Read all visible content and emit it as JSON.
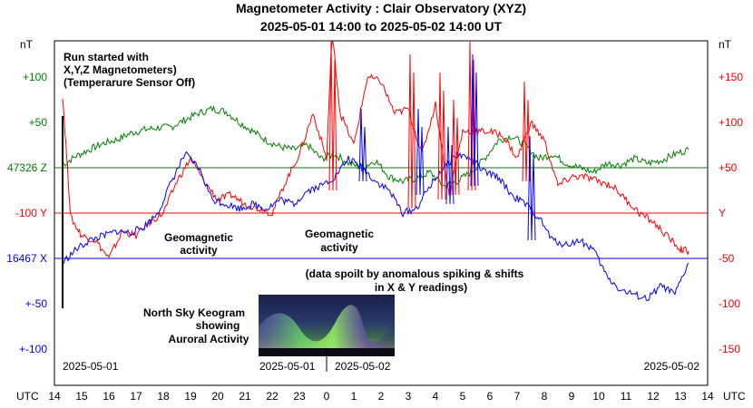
{
  "title": "Magnetometer Activity : Clair Observatory (XYZ)",
  "subtitle": "2025-05-01 14:00 to 2025-05-02 14:00 UT",
  "left_unit": "nT",
  "right_unit": "nT",
  "x_unit": "UTC",
  "left_ticks": [
    {
      "label": "+100",
      "color": "#008000"
    },
    {
      "label": "+50",
      "color": "#008000"
    },
    {
      "label": "47326 Z",
      "color": "#008000"
    },
    {
      "label": "-100  Y",
      "color": "#ff0000"
    },
    {
      "label": "16467 X",
      "color": "#0000ff"
    },
    {
      "label": "+-50",
      "color": "#0000ff"
    },
    {
      "label": "+-100",
      "color": "#0000ff"
    }
  ],
  "right_ticks": [
    {
      "label": "+150",
      "color": "#ff0000"
    },
    {
      "label": "+100",
      "color": "#ff0000"
    },
    {
      "label": "+50",
      "color": "#ff0000"
    },
    {
      "label": "Y",
      "color": "#ff0000"
    },
    {
      "label": "-50",
      "color": "#ff0000"
    },
    {
      "label": "-100",
      "color": "#ff0000"
    },
    {
      "label": "-150",
      "color": "#ff0000"
    }
  ],
  "x_ticks": [
    "14",
    "15",
    "16",
    "17",
    "18",
    "19",
    "20",
    "21",
    "22",
    "23",
    "0",
    "1",
    "2",
    "3",
    "4",
    "5",
    "6",
    "7",
    "8",
    "9",
    "10",
    "11",
    "12",
    "13",
    "14"
  ],
  "date_labels": {
    "start": "2025-05-01",
    "keogram_left": "2025-05-01",
    "keogram_right": "2025-05-02",
    "end": "2025-05-02"
  },
  "annotations": {
    "run_started": [
      "Run started with",
      "X,Y,Z Magnetometers)",
      " (Temperarure Sensor Off)"
    ],
    "geo1": [
      "Geomagnetic",
      "activity"
    ],
    "geo2": [
      "Geomagnetic",
      "activity"
    ],
    "spoilt": [
      "(data spoilt by anomalous spiking & shifts",
      "in X & Y readings)"
    ],
    "keogram": [
      "North Sky Keogram",
      "showing",
      "Auroral Activity"
    ]
  },
  "colors": {
    "z": "#008000",
    "y": "#ff0000",
    "x": "#0000ff",
    "keogram_bg": "#101838"
  },
  "chart_data": {
    "type": "line",
    "title": "Magnetometer Activity : Clair Observatory (XYZ)",
    "subtitle": "2025-05-01 14:00 to 2025-05-02 14:00 UT",
    "x_range_utc_hours": [
      14,
      38
    ],
    "grid": false,
    "series": [
      {
        "name": "Z",
        "baseline": 47326,
        "color": "#008000",
        "x": [
          14.3,
          14.8,
          15.3,
          15.8,
          16.3,
          16.8,
          17.3,
          17.8,
          18.3,
          18.8,
          19.3,
          19.8,
          20.3,
          20.8,
          21.3,
          21.8,
          22.3,
          22.8,
          23.3,
          23.8,
          24.3,
          24.8,
          25.3,
          25.8,
          26.3,
          26.8,
          27.3,
          27.8,
          28.3,
          28.8,
          29.3,
          29.8,
          30.3,
          30.8,
          31.3,
          31.8,
          32.3,
          32.8,
          33.3,
          33.8,
          34.3,
          34.8,
          35.3,
          35.8,
          36.3,
          36.8,
          37.3
        ],
        "values": [
          3,
          13,
          20,
          27,
          31,
          38,
          42,
          44,
          45,
          53,
          60,
          65,
          62,
          50,
          40,
          30,
          23,
          20,
          25,
          10,
          15,
          5,
          0,
          8,
          -10,
          -15,
          -12,
          -5,
          -20,
          -15,
          -5,
          10,
          30,
          35,
          25,
          10,
          15,
          5,
          0,
          -5,
          5,
          3,
          10,
          5,
          8,
          15,
          20
        ]
      },
      {
        "name": "Y",
        "baseline": -100,
        "color": "#ff0000",
        "x": [
          14.3,
          14.6,
          15.0,
          15.5,
          16.0,
          16.5,
          17.0,
          17.5,
          18.0,
          18.5,
          19.0,
          19.5,
          20.0,
          20.5,
          21.0,
          21.5,
          22.0,
          22.5,
          23.0,
          23.5,
          24.0,
          24.2,
          24.5,
          25.0,
          25.5,
          26.0,
          26.5,
          27.0,
          27.5,
          28.0,
          28.5,
          29.0,
          29.5,
          30.0,
          30.5,
          31.0,
          31.5,
          32.0,
          32.5,
          33.0,
          33.5,
          34.0,
          34.5,
          35.0,
          35.5,
          36.0,
          36.5,
          37.0,
          37.3
        ],
        "values": [
          130,
          -5,
          -25,
          -30,
          -50,
          -20,
          -25,
          -10,
          0,
          35,
          60,
          35,
          15,
          20,
          10,
          5,
          0,
          35,
          65,
          110,
          60,
          200,
          110,
          75,
          150,
          145,
          110,
          115,
          65,
          120,
          20,
          90,
          90,
          90,
          85,
          60,
          100,
          80,
          30,
          40,
          40,
          35,
          30,
          15,
          0,
          -10,
          -25,
          -40,
          -42
        ]
      },
      {
        "name": "X",
        "baseline": 16467,
        "color": "#0000ff",
        "x": [
          14.3,
          14.8,
          15.3,
          15.8,
          16.3,
          16.8,
          17.3,
          17.8,
          18.3,
          18.8,
          19.3,
          19.8,
          20.3,
          20.8,
          21.3,
          21.8,
          22.3,
          22.8,
          23.3,
          23.8,
          24.3,
          24.8,
          25.3,
          25.8,
          26.3,
          26.8,
          27.3,
          27.8,
          28.3,
          28.8,
          29.3,
          29.8,
          30.3,
          30.8,
          31.3,
          31.8,
          32.3,
          32.8,
          33.3,
          33.8,
          34.3,
          34.8,
          35.3,
          35.8,
          36.3,
          36.8,
          37.3
        ],
        "values": [
          -5,
          10,
          20,
          25,
          30,
          28,
          35,
          50,
          85,
          115,
          100,
          65,
          60,
          55,
          60,
          55,
          65,
          60,
          75,
          80,
          90,
          110,
          100,
          85,
          75,
          50,
          55,
          80,
          100,
          115,
          110,
          95,
          90,
          70,
          60,
          45,
          20,
          15,
          20,
          10,
          -20,
          -35,
          -40,
          -45,
          -30,
          -40,
          -5
        ]
      }
    ],
    "left_axis": {
      "unit": "nT",
      "labels": [
        "+100",
        "+50",
        "47326 Z",
        "-100  Y",
        "16467 X",
        "+-50",
        "+-100"
      ]
    },
    "right_axis": {
      "unit": "nT",
      "labels": [
        "+150",
        "+100",
        "+50",
        "Y",
        "-50",
        "-100",
        "-150"
      ]
    },
    "x_axis": {
      "unit": "UTC",
      "labels": [
        "14",
        "15",
        "16",
        "17",
        "18",
        "19",
        "20",
        "21",
        "22",
        "23",
        "0",
        "1",
        "2",
        "3",
        "4",
        "5",
        "6",
        "7",
        "8",
        "9",
        "10",
        "11",
        "12",
        "13",
        "14"
      ]
    }
  }
}
